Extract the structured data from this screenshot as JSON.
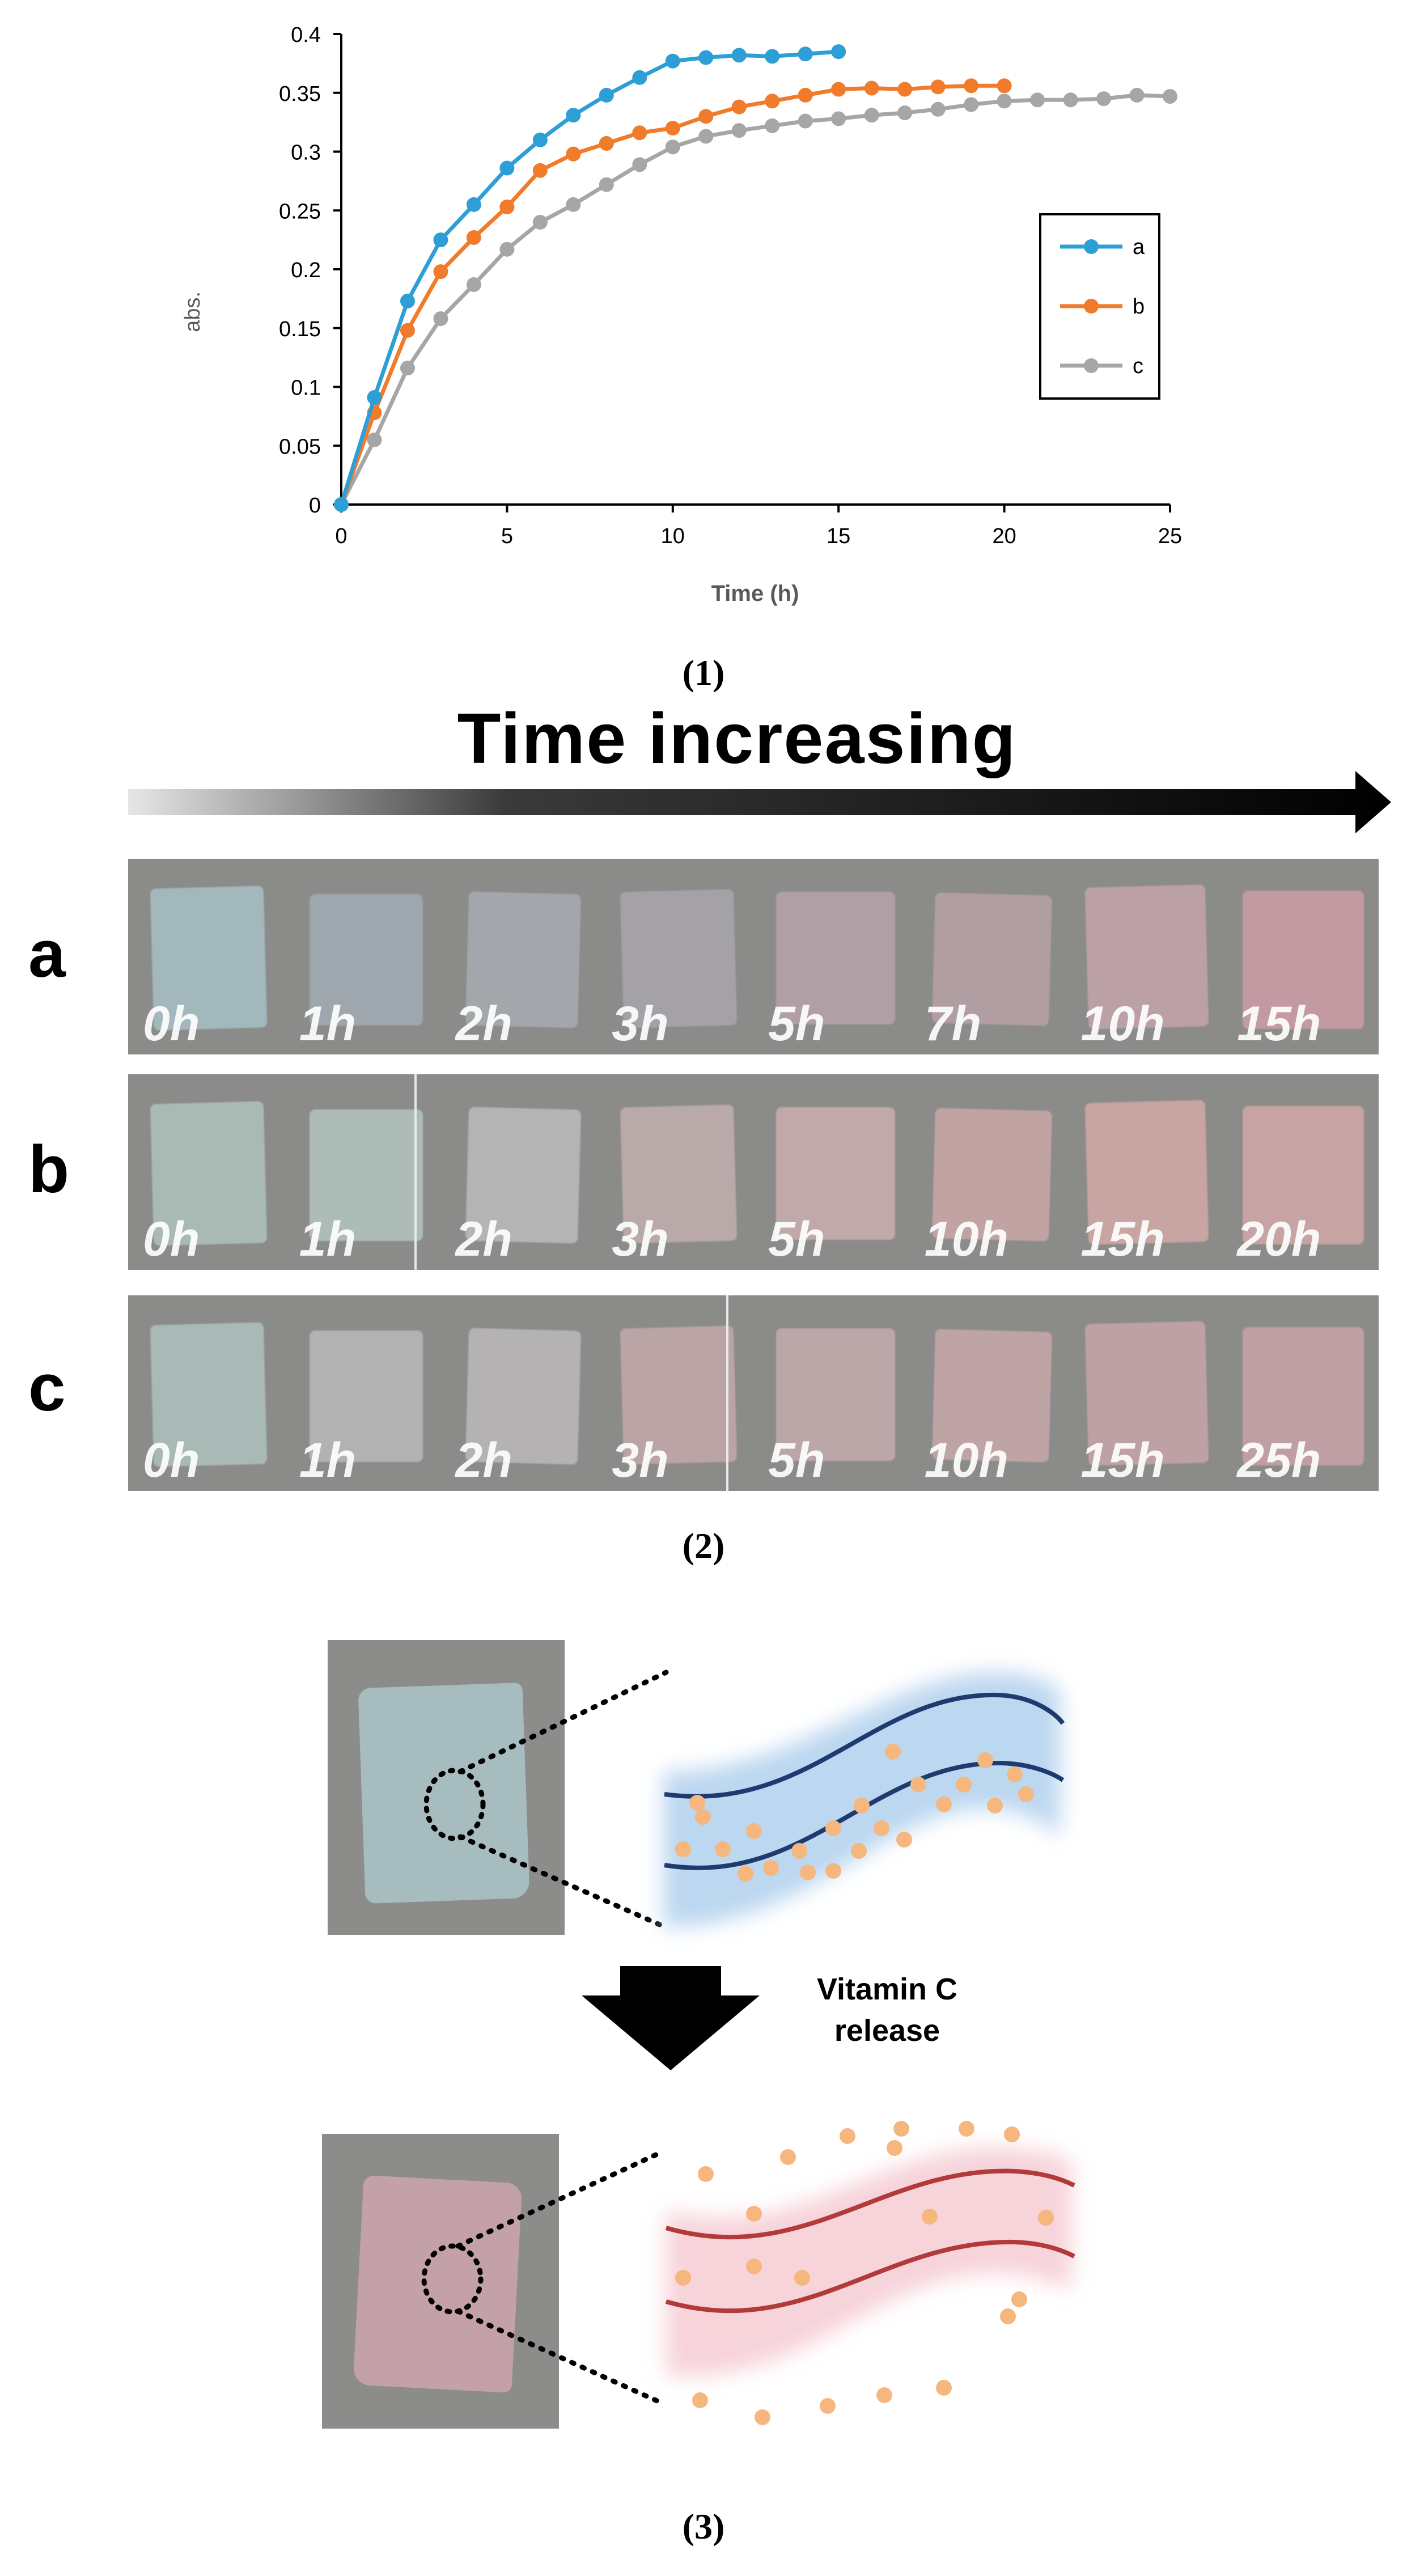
{
  "chart_data": {
    "type": "line",
    "title": "",
    "xlabel": "Time (h)",
    "ylabel": "abs.",
    "xlim": [
      0,
      25
    ],
    "ylim": [
      0,
      0.4
    ],
    "x_ticks": [
      "0",
      "5",
      "10",
      "15",
      "20",
      "25"
    ],
    "y_ticks": [
      "0",
      "0.05",
      "0.1",
      "0.15",
      "0.2",
      "0.25",
      "0.3",
      "0.35",
      "0.4"
    ],
    "legend_position": "right",
    "series": [
      {
        "name": "a",
        "color": "#2e9fd6",
        "x": [
          0,
          1,
          2,
          3,
          4,
          5,
          6,
          7,
          8,
          9,
          10,
          11,
          12,
          13,
          14,
          15
        ],
        "y": [
          0,
          0.091,
          0.173,
          0.225,
          0.255,
          0.286,
          0.31,
          0.331,
          0.348,
          0.363,
          0.377,
          0.38,
          0.382,
          0.381,
          0.383,
          0.385
        ]
      },
      {
        "name": "b",
        "color": "#f07b2b",
        "x": [
          0,
          1,
          2,
          3,
          4,
          5,
          6,
          7,
          8,
          9,
          10,
          11,
          12,
          13,
          14,
          15,
          16,
          17,
          18,
          19,
          20
        ],
        "y": [
          0,
          0.078,
          0.148,
          0.198,
          0.227,
          0.253,
          0.284,
          0.298,
          0.307,
          0.316,
          0.32,
          0.33,
          0.338,
          0.343,
          0.348,
          0.353,
          0.354,
          0.353,
          0.355,
          0.356,
          0.356
        ]
      },
      {
        "name": "c",
        "color": "#a6a6a6",
        "x": [
          0,
          1,
          2,
          3,
          4,
          5,
          6,
          7,
          8,
          9,
          10,
          11,
          12,
          13,
          14,
          15,
          16,
          17,
          18,
          19,
          20,
          21,
          22,
          23,
          24,
          25
        ],
        "y": [
          0,
          0.055,
          0.116,
          0.158,
          0.187,
          0.217,
          0.24,
          0.255,
          0.272,
          0.289,
          0.304,
          0.313,
          0.318,
          0.322,
          0.326,
          0.328,
          0.331,
          0.333,
          0.336,
          0.34,
          0.343,
          0.344,
          0.344,
          0.345,
          0.348,
          0.347
        ]
      }
    ]
  },
  "captions": [
    "(1)",
    "(2)",
    "(3)"
  ],
  "panel2": {
    "heading": "Time increasing",
    "rows": [
      {
        "label": "a",
        "times": [
          "0h",
          "1h",
          "2h",
          "3h",
          "5h",
          "7h",
          "10h",
          "15h"
        ],
        "colors": [
          "#a2b8bc",
          "#9ea7ad",
          "#a3a6ab",
          "#a5a2a7",
          "#b0a0a5",
          "#b19ea2",
          "#bba0a6",
          "#c39aa1"
        ]
      },
      {
        "label": "b",
        "times": [
          "0h",
          "1h",
          "2h",
          "3h",
          "5h",
          "10h",
          "15h",
          "20h"
        ],
        "colors": [
          "#a9b9b3",
          "#aebcb8",
          "#b4b4b4",
          "#b9aaa9",
          "#c0a9a8",
          "#c1a3a3",
          "#c8a4a2",
          "#c7a3a4"
        ]
      },
      {
        "label": "c",
        "times": [
          "0h",
          "1h",
          "2h",
          "3h",
          "5h",
          "10h",
          "15h",
          "25h"
        ],
        "colors": [
          "#a9b9b5",
          "#b2b2b2",
          "#b4b2b2",
          "#bba4a5",
          "#bca7a8",
          "#bea4a5",
          "#bea1a4",
          "#c09fa4"
        ]
      }
    ]
  },
  "panel3": {
    "release_label_1": "Vitamin C",
    "release_label_2": "release",
    "before_color": "#a7bcbe",
    "after_color": "#c4a0a8",
    "band_before": "#bcd7f0",
    "band_after": "#f7d3da",
    "dot_color": "#f6b77e"
  }
}
